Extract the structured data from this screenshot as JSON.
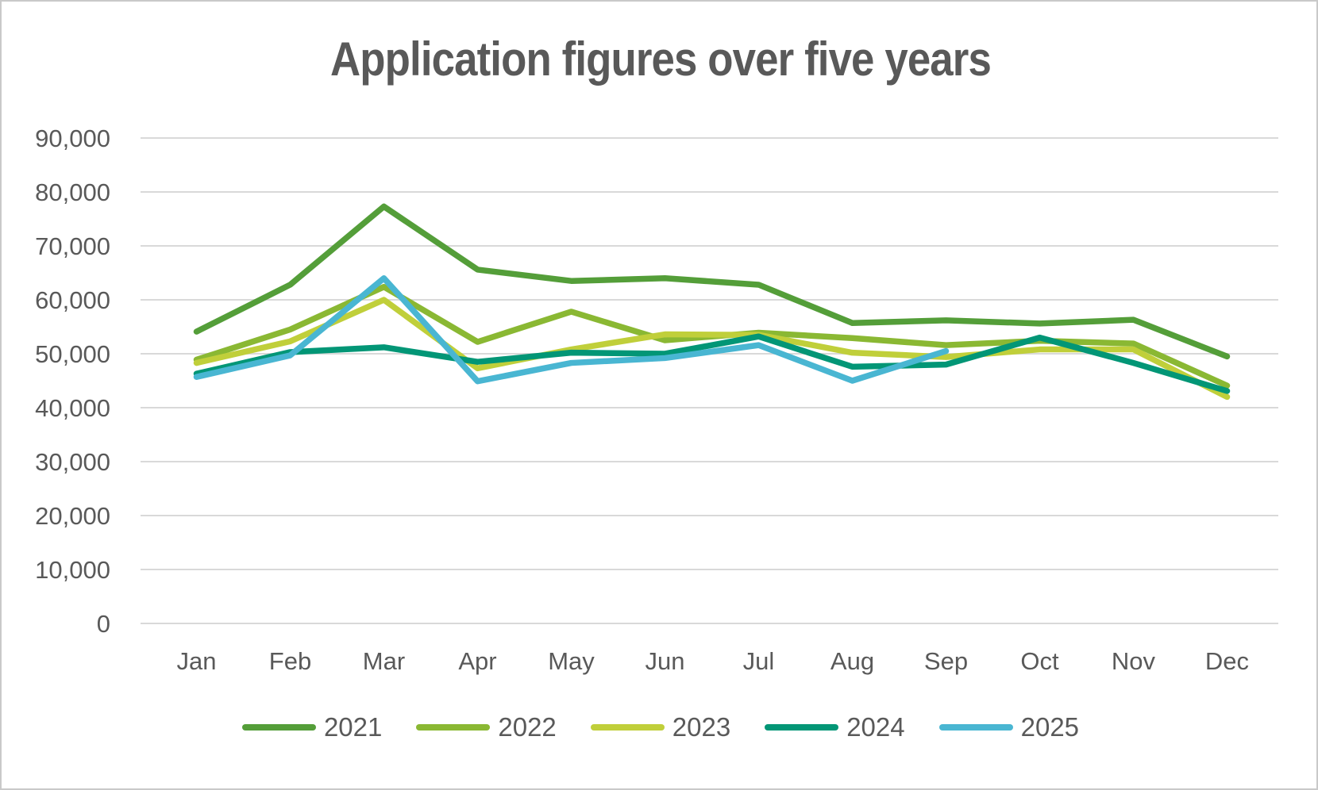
{
  "frame": {
    "background": "#ffffff",
    "border_color": "#c9c9c9"
  },
  "chart_data": {
    "type": "line",
    "title": "Application figures over five years",
    "categories": [
      "Jan",
      "Feb",
      "Mar",
      "Apr",
      "May",
      "Jun",
      "Jul",
      "Aug",
      "Sep",
      "Oct",
      "Nov",
      "Dec"
    ],
    "series": [
      {
        "name": "2021",
        "color": "#549E39",
        "values": [
          54100,
          62800,
          77300,
          65600,
          63500,
          64000,
          62800,
          55700,
          56200,
          55600,
          56300,
          49500
        ]
      },
      {
        "name": "2022",
        "color": "#8AB833",
        "values": [
          48900,
          54500,
          62400,
          52200,
          57800,
          52500,
          53900,
          52900,
          51600,
          52400,
          51900,
          44100
        ]
      },
      {
        "name": "2023",
        "color": "#C0CF3A",
        "values": [
          48300,
          52300,
          60000,
          47300,
          50800,
          53600,
          53500,
          50200,
          49400,
          50800,
          50800,
          42000
        ]
      },
      {
        "name": "2024",
        "color": "#029676",
        "values": [
          46300,
          50300,
          51200,
          48500,
          50200,
          50000,
          53200,
          47600,
          48000,
          53000,
          48300,
          43100
        ]
      },
      {
        "name": "2025",
        "color": "#49B6D2",
        "values": [
          45700,
          49700,
          64000,
          44900,
          48300,
          49200,
          51600,
          45000,
          50500
        ]
      }
    ],
    "xlabel": "",
    "ylabel": "",
    "ylim": [
      0,
      90000
    ],
    "y_tick_step": 10000,
    "y_ticks": [
      "0",
      "10,000",
      "20,000",
      "30,000",
      "40,000",
      "50,000",
      "60,000",
      "70,000",
      "80,000",
      "90,000"
    ],
    "grid": "horizontal",
    "gridline_color": "#D9D9D9",
    "text_color": "#595959",
    "legend_position": "bottom"
  }
}
